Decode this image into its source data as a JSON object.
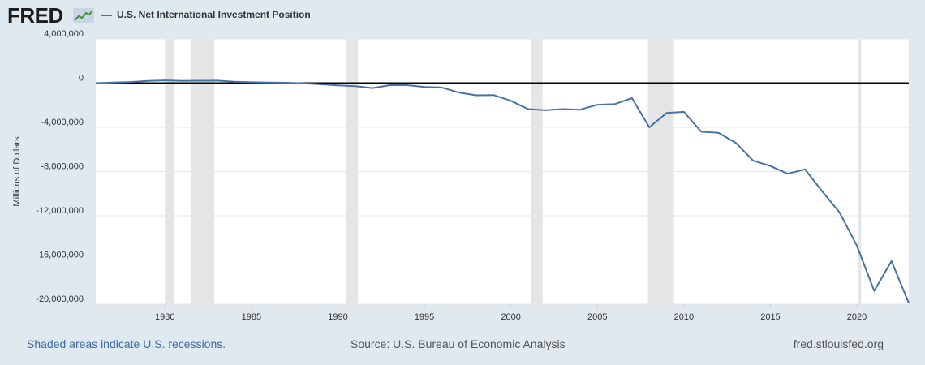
{
  "header": {
    "logo_text": "FRED",
    "legend_label": "U.S. Net International Investment Position"
  },
  "colors": {
    "background": "#e1e9f0",
    "plot_background": "#ffffff",
    "series": "#4572a7",
    "recession": "#e5e5e5",
    "gridline": "#e6e6e6",
    "zero_line": "#000000"
  },
  "footer": {
    "recession_note": "Shaded areas indicate U.S. recessions.",
    "source": "Source: U.S. Bureau of Economic Analysis",
    "site": "fred.stlouisfed.org"
  },
  "chart_data": {
    "type": "line",
    "title": "",
    "xlabel": "",
    "ylabel": "Millions of Dollars",
    "xlim": [
      1976,
      2023
    ],
    "ylim": [
      -20000000,
      4000000
    ],
    "grid": true,
    "legend_position": "top-left",
    "yticks": [
      4000000,
      0,
      -4000000,
      -8000000,
      -12000000,
      -16000000,
      -20000000
    ],
    "ytick_labels": [
      "4,000,000",
      "0",
      "-4,000,000",
      "-8,000,000",
      "-12,000,000",
      "-16,000,000",
      "-20,000,000"
    ],
    "xticks": [
      1980,
      1985,
      1990,
      1995,
      2000,
      2005,
      2010,
      2015,
      2020
    ],
    "xtick_labels": [
      "1980",
      "1985",
      "1990",
      "1995",
      "2000",
      "2005",
      "2010",
      "2015",
      "2020"
    ],
    "recessions": [
      [
        1980.0,
        1980.5
      ],
      [
        1981.5,
        1982.85
      ],
      [
        1990.5,
        1991.17
      ],
      [
        2001.17,
        2001.83
      ],
      [
        2007.92,
        2009.42
      ],
      [
        2020.08,
        2020.25
      ]
    ],
    "series": [
      {
        "name": "U.S. Net International Investment Position",
        "x": [
          1976,
          1977,
          1978,
          1979,
          1980,
          1981,
          1982,
          1983,
          1984,
          1985,
          1986,
          1987,
          1988,
          1989,
          1990,
          1991,
          1992,
          1993,
          1994,
          1995,
          1996,
          1997,
          1998,
          1999,
          2000,
          2001,
          2002,
          2003,
          2004,
          2005,
          2006,
          2007,
          2008,
          2009,
          2010,
          2011,
          2012,
          2013,
          2014,
          2015,
          2016,
          2017,
          2018,
          2019,
          2020,
          2021,
          2022,
          2023
        ],
        "values": [
          0,
          50000,
          100000,
          200000,
          250000,
          200000,
          220000,
          230000,
          130000,
          80000,
          60000,
          40000,
          -20000,
          -100000,
          -200000,
          -280000,
          -450000,
          -180000,
          -180000,
          -350000,
          -400000,
          -850000,
          -1100000,
          -1080000,
          -1600000,
          -2350000,
          -2450000,
          -2350000,
          -2400000,
          -1950000,
          -1900000,
          -1350000,
          -4000000,
          -2700000,
          -2600000,
          -4400000,
          -4500000,
          -5400000,
          -7000000,
          -7500000,
          -8200000,
          -7800000,
          -9800000,
          -11700000,
          -14700000,
          -18800000,
          -16100000,
          -19900000
        ]
      }
    ]
  }
}
